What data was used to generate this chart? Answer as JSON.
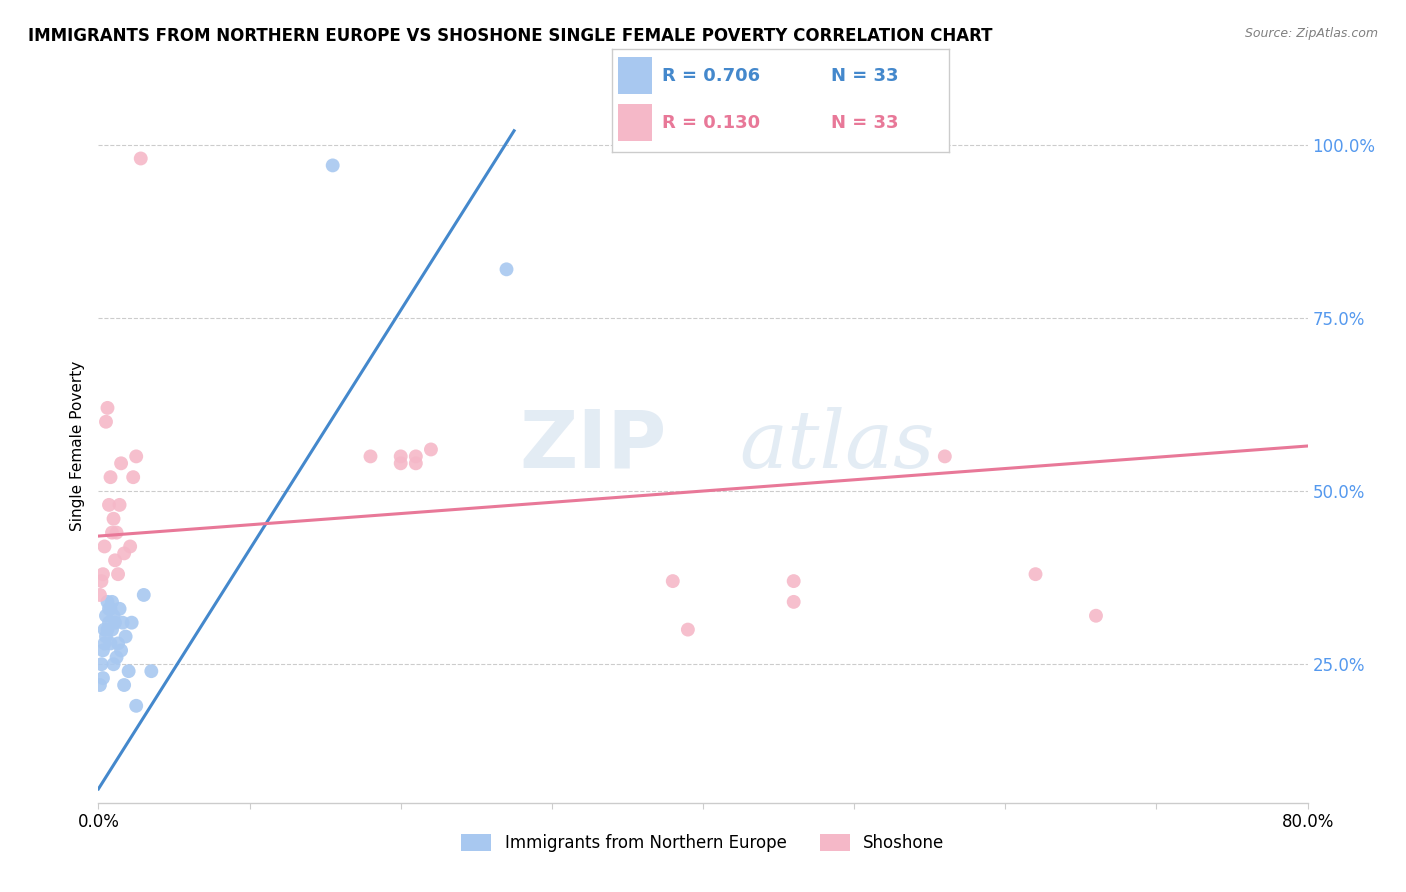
{
  "title": "IMMIGRANTS FROM NORTHERN EUROPE VS SHOSHONE SINGLE FEMALE POVERTY CORRELATION CHART",
  "source": "Source: ZipAtlas.com",
  "ylabel": "Single Female Poverty",
  "xlim": [
    0.0,
    0.8
  ],
  "ylim": [
    0.05,
    1.08
  ],
  "xticks": [
    0.0,
    0.1,
    0.2,
    0.3,
    0.4,
    0.5,
    0.6,
    0.7,
    0.8
  ],
  "xticklabels": [
    "0.0%",
    "",
    "",
    "",
    "",
    "",
    "",
    "",
    "80.0%"
  ],
  "ytick_positions": [
    0.25,
    0.5,
    0.75,
    1.0
  ],
  "ytick_labels": [
    "25.0%",
    "50.0%",
    "75.0%",
    "100.0%"
  ],
  "blue_color": "#A8C8F0",
  "pink_color": "#F5B8C8",
  "blue_line_color": "#4488CC",
  "pink_line_color": "#E87898",
  "legend_blue_r": "R = 0.706",
  "legend_blue_n": "N = 33",
  "legend_pink_r": "R = 0.130",
  "legend_pink_n": "N = 33",
  "watermark_zip": "ZIP",
  "watermark_atlas": "atlas",
  "blue_scatter_x": [
    0.001,
    0.002,
    0.003,
    0.003,
    0.004,
    0.004,
    0.005,
    0.005,
    0.006,
    0.006,
    0.007,
    0.007,
    0.008,
    0.008,
    0.009,
    0.009,
    0.01,
    0.01,
    0.011,
    0.012,
    0.013,
    0.014,
    0.015,
    0.016,
    0.017,
    0.018,
    0.02,
    0.022,
    0.025,
    0.03,
    0.035,
    0.155,
    0.27
  ],
  "blue_scatter_y": [
    0.22,
    0.25,
    0.23,
    0.27,
    0.28,
    0.3,
    0.29,
    0.32,
    0.3,
    0.34,
    0.31,
    0.33,
    0.28,
    0.33,
    0.3,
    0.34,
    0.25,
    0.32,
    0.31,
    0.26,
    0.28,
    0.33,
    0.27,
    0.31,
    0.22,
    0.29,
    0.24,
    0.31,
    0.19,
    0.35,
    0.24,
    0.97,
    0.82
  ],
  "pink_scatter_x": [
    0.001,
    0.002,
    0.003,
    0.004,
    0.005,
    0.006,
    0.007,
    0.008,
    0.009,
    0.01,
    0.011,
    0.012,
    0.013,
    0.014,
    0.015,
    0.017,
    0.021,
    0.023,
    0.025,
    0.028,
    0.18,
    0.2,
    0.21,
    0.2,
    0.21,
    0.22,
    0.38,
    0.39,
    0.46,
    0.46,
    0.56,
    0.62,
    0.66
  ],
  "pink_scatter_y": [
    0.35,
    0.37,
    0.38,
    0.42,
    0.6,
    0.62,
    0.48,
    0.52,
    0.44,
    0.46,
    0.4,
    0.44,
    0.38,
    0.48,
    0.54,
    0.41,
    0.42,
    0.52,
    0.55,
    0.98,
    0.55,
    0.55,
    0.55,
    0.54,
    0.54,
    0.56,
    0.37,
    0.3,
    0.37,
    0.34,
    0.55,
    0.38,
    0.32
  ],
  "blue_trend_x": [
    0.0,
    0.275
  ],
  "blue_trend_y": [
    0.07,
    1.02
  ],
  "pink_trend_x": [
    0.0,
    0.8
  ],
  "pink_trend_y": [
    0.435,
    0.565
  ]
}
